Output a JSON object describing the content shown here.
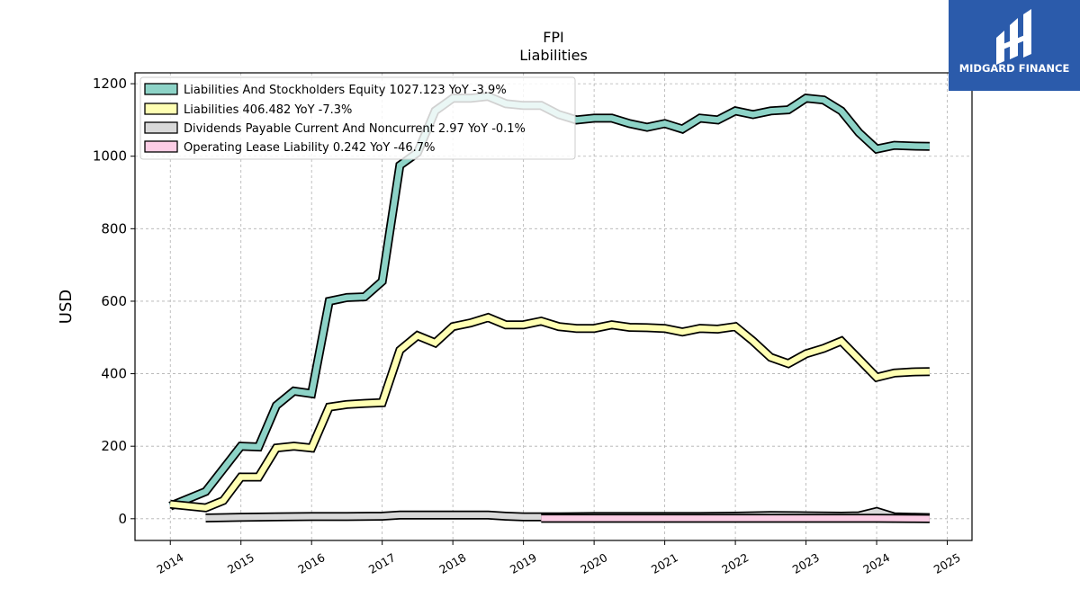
{
  "colors": {
    "equity": "#8dd3c7",
    "liabilities": "#ffffb3",
    "dividends": "#d9d9d9",
    "lease": "#fccde5",
    "logo_bg": "#2b5bab"
  },
  "logo": {
    "text": "MIDGARD FINANCE",
    "icon": "midgard-logo-icon"
  },
  "chart_data": {
    "type": "line",
    "title": "FPI",
    "subtitle": "Liabilities",
    "xlabel": "",
    "ylabel": "USD",
    "xlim": [
      2013.5,
      2025.35
    ],
    "ylim": [
      -60,
      1230
    ],
    "yticks": [
      "0",
      "200",
      "400",
      "600",
      "800",
      "1000",
      "1200"
    ],
    "xticks": [
      "2014",
      "2015",
      "2016",
      "2017",
      "2018",
      "2019",
      "2020",
      "2021",
      "2022",
      "2023",
      "2024",
      "2025"
    ],
    "grid": true,
    "legend_position": "top-left",
    "legend": [
      "Liabilities And Stockholders Equity  1027.123 YoY -3.9%",
      "Liabilities  406.482 YoY -7.3%",
      "Dividends Payable Current And Noncurrent  2.97 YoY -0.1%",
      "Operating Lease Liability  0.242 YoY -46.7%"
    ],
    "series": [
      {
        "name": "Liabilities And Stockholders Equity",
        "x": [
          2014.0,
          2014.5,
          2015.0,
          2015.25,
          2015.5,
          2015.75,
          2016.0,
          2016.25,
          2016.5,
          2016.75,
          2017.0,
          2017.25,
          2017.5,
          2017.75,
          2018.0,
          2018.25,
          2018.5,
          2018.75,
          2019.0,
          2019.25,
          2019.5,
          2019.75,
          2020.0,
          2020.25,
          2020.5,
          2020.75,
          2021.0,
          2021.25,
          2021.5,
          2021.75,
          2022.0,
          2022.25,
          2022.5,
          2022.75,
          2023.0,
          2023.25,
          2023.5,
          2023.75,
          2024.0,
          2024.25,
          2024.5,
          2024.75
        ],
        "y": [
          35,
          75,
          200,
          198,
          312,
          352,
          345,
          600,
          610,
          612,
          655,
          975,
          1010,
          1125,
          1160,
          1160,
          1165,
          1145,
          1140,
          1140,
          1115,
          1100,
          1105,
          1105,
          1090,
          1080,
          1090,
          1075,
          1105,
          1100,
          1125,
          1115,
          1125,
          1128,
          1160,
          1155,
          1125,
          1065,
          1020,
          1030,
          1028,
          1027
        ]
      },
      {
        "name": "Liabilities",
        "x": [
          2014.0,
          2014.5,
          2014.75,
          2015.0,
          2015.25,
          2015.5,
          2015.75,
          2016.0,
          2016.25,
          2016.5,
          2016.75,
          2017.0,
          2017.25,
          2017.5,
          2017.75,
          2018.0,
          2018.25,
          2018.5,
          2018.75,
          2019.0,
          2019.25,
          2019.5,
          2019.75,
          2020.0,
          2020.25,
          2020.5,
          2020.75,
          2021.0,
          2021.25,
          2021.5,
          2021.75,
          2022.0,
          2022.25,
          2022.5,
          2022.75,
          2023.0,
          2023.25,
          2023.5,
          2023.75,
          2024.0,
          2024.25,
          2024.5,
          2024.75
        ],
        "y": [
          40,
          30,
          50,
          115,
          115,
          195,
          200,
          195,
          308,
          315,
          318,
          320,
          465,
          505,
          485,
          530,
          540,
          555,
          535,
          535,
          545,
          530,
          525,
          525,
          535,
          528,
          527,
          525,
          515,
          525,
          523,
          530,
          490,
          445,
          428,
          455,
          470,
          490,
          440,
          390,
          402,
          405,
          406
        ]
      },
      {
        "name": "Dividends Payable Current And Noncurrent",
        "x": [
          2014.5,
          2015.0,
          2015.5,
          2016.0,
          2016.5,
          2017.0,
          2017.25,
          2017.5,
          2018.0,
          2018.5,
          2018.75,
          2019.0,
          2019.5,
          2020.0,
          2020.5,
          2021.0,
          2021.5,
          2022.0,
          2022.5,
          2023.0,
          2023.5,
          2023.75,
          2024.0,
          2024.25,
          2024.5,
          2024.75
        ],
        "y": [
          2,
          4,
          5,
          6,
          6,
          7,
          10,
          10,
          10,
          10,
          7,
          5,
          5,
          6,
          6,
          6,
          6,
          7,
          9,
          8,
          7,
          8,
          20,
          5,
          4,
          3
        ]
      },
      {
        "name": "Operating Lease Liability",
        "x": [
          2019.25,
          2019.5,
          2020.0,
          2020.5,
          2021.0,
          2021.5,
          2022.0,
          2022.5,
          2023.0,
          2023.5,
          2024.0,
          2024.5,
          2024.75
        ],
        "y": [
          1,
          1,
          1,
          1,
          1,
          1,
          1,
          1,
          1,
          1,
          1,
          0.5,
          0.2
        ]
      }
    ]
  }
}
